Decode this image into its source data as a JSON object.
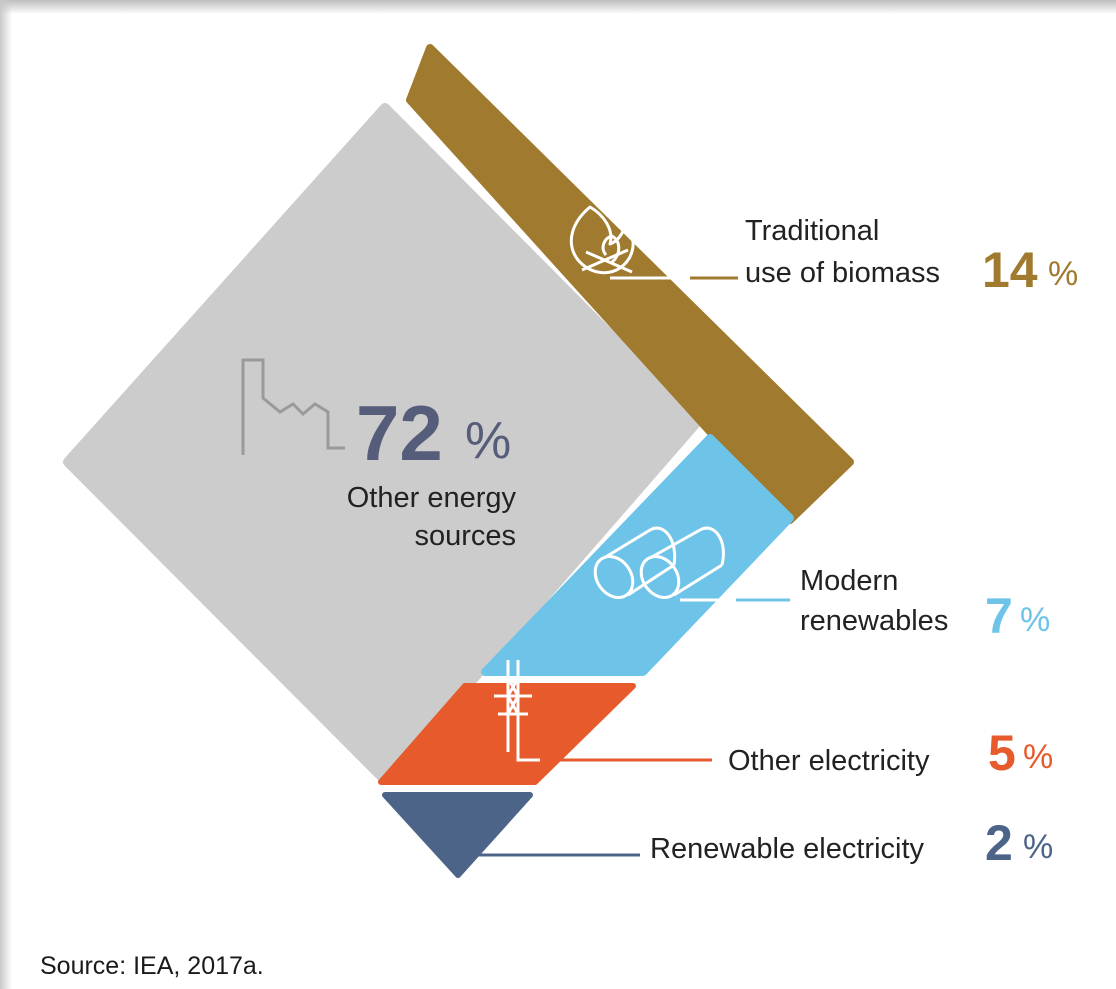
{
  "chart_data": {
    "type": "pie",
    "title": "",
    "categories": [
      "Other energy sources",
      "Traditional use of biomass",
      "Modern renewables",
      "Other electricity",
      "Renewable electricity"
    ],
    "values": [
      72,
      14,
      7,
      5,
      2
    ],
    "unit": "%",
    "slices": [
      {
        "key": "other",
        "label": "Other energy sources",
        "label_lines": [
          "Other energy",
          "sources"
        ],
        "value": 72,
        "value_text": "72",
        "color": "#cccccc",
        "number_color": "#565d7a",
        "icon": "factory-icon"
      },
      {
        "key": "biomass",
        "label": "Traditional use of biomass",
        "label_lines": [
          "Traditional",
          "use of biomass"
        ],
        "value": 14,
        "value_text": "14",
        "color": "#a07a2e",
        "number_color": "#a07a2e",
        "icon": "fire-icon"
      },
      {
        "key": "modern",
        "label": "Modern renewables",
        "label_lines": [
          "Modern",
          "renewables"
        ],
        "value": 7,
        "value_text": "7",
        "color": "#6ec4e8",
        "number_color": "#6ec4e8",
        "icon": "pipes-icon"
      },
      {
        "key": "otherelec",
        "label": "Other electricity",
        "label_lines": [
          "Other electricity"
        ],
        "value": 5,
        "value_text": "5",
        "color": "#e65a2c",
        "number_color": "#e65a2c",
        "icon": "pylon-icon"
      },
      {
        "key": "renelec",
        "label": "Renewable electricity",
        "label_lines": [
          "Renewable electricity"
        ],
        "value": 2,
        "value_text": "2",
        "color": "#4d6489",
        "number_color": "#4d6489",
        "icon": ""
      }
    ],
    "percent_sign": "%"
  },
  "source": "Source: IEA, 2017a."
}
